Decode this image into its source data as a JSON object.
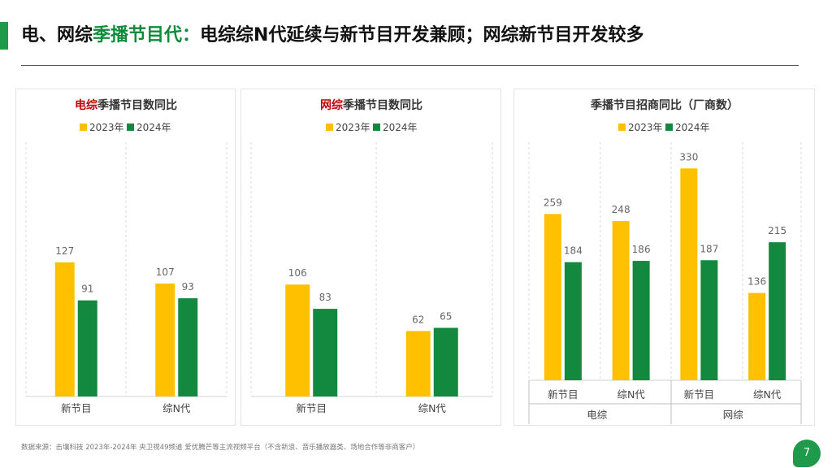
{
  "header": {
    "title_part1": "电、网综",
    "title_part2": "季播节目代：",
    "title_part3": "电综综N代延续与新节目开发兼顾；网综新节目开发较多"
  },
  "colors": {
    "y2023": "#ffc000",
    "y2024": "#12893f",
    "accent": "#1f9a4a",
    "highlight": "#c00000"
  },
  "footer": {
    "source": "数据来源：击壤科技 2023年-2024年 央卫视49频道 爱优腾芒等主流视频平台（不含新浪、音乐播放器类、场地合作等非商客户）",
    "page_number": "7"
  },
  "chart_data": [
    {
      "type": "bar",
      "title_highlight": "电综",
      "title_rest": "季播节目数同比",
      "categories": [
        "新节目",
        "综N代"
      ],
      "series": [
        {
          "name": "2023年",
          "values": [
            127,
            107
          ]
        },
        {
          "name": "2024年",
          "values": [
            91,
            93
          ]
        }
      ],
      "grid": "vertical-dashed",
      "legend": "top-center"
    },
    {
      "type": "bar",
      "title_highlight": "网综",
      "title_rest": "季播节目数同比",
      "categories": [
        "新节目",
        "综N代"
      ],
      "series": [
        {
          "name": "2023年",
          "values": [
            106,
            62
          ]
        },
        {
          "name": "2024年",
          "values": [
            83,
            65
          ]
        }
      ],
      "grid": "vertical-dashed",
      "legend": "top-center"
    },
    {
      "type": "bar",
      "title_highlight": "",
      "title_rest": "季播节目招商同比（厂商数）",
      "categories": [
        "新节目",
        "综N代",
        "新节目",
        "综N代"
      ],
      "groups": [
        "电综",
        "网综"
      ],
      "series": [
        {
          "name": "2023年",
          "values": [
            259,
            248,
            330,
            136
          ]
        },
        {
          "name": "2024年",
          "values": [
            184,
            186,
            187,
            215
          ]
        }
      ],
      "grid": "vertical-dashed",
      "legend": "top-center"
    }
  ]
}
